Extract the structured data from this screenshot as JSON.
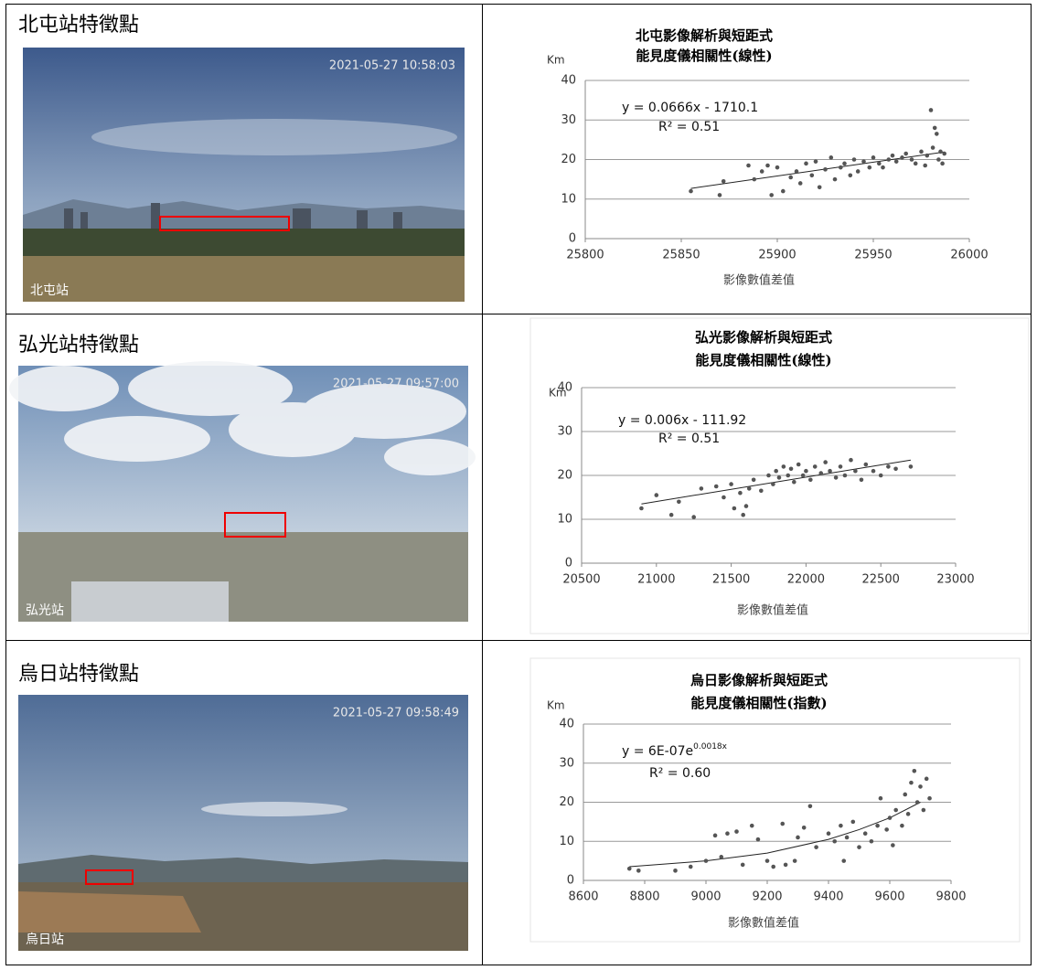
{
  "table": {
    "rows": [
      {
        "title": "北屯站特徵點",
        "timestamp": "2021-05-27 10:58:03",
        "station": "北屯站"
      },
      {
        "title": "弘光站特徵點",
        "timestamp": "2021-05-27 09:57:00",
        "station": "弘光站"
      },
      {
        "title": "烏日站特徵點",
        "timestamp": "2021-05-27 09:58:49",
        "station": "烏日站"
      }
    ]
  },
  "chart_data": [
    {
      "type": "scatter",
      "title": [
        "北屯影像解析與短距式",
        "能見度儀相關性(線性)"
      ],
      "ylabel": "Km",
      "xlabel": "影像數值差值",
      "equation": {
        "text": "y = 0.0666x - 1710.1"
      },
      "r2": "R² = 0.51",
      "color": "#555555",
      "x": [
        25855,
        25870,
        25872,
        25885,
        25888,
        25892,
        25895,
        25897,
        25900,
        25903,
        25907,
        25910,
        25912,
        25915,
        25918,
        25920,
        25922,
        25925,
        25928,
        25930,
        25933,
        25935,
        25938,
        25940,
        25942,
        25945,
        25948,
        25950,
        25953,
        25955,
        25958,
        25960,
        25962,
        25965,
        25967,
        25970,
        25972,
        25975,
        25977,
        25978,
        25980,
        25981,
        25982,
        25983,
        25984,
        25985,
        25986,
        25987
      ],
      "values": [
        12,
        11,
        14.5,
        18.5,
        15,
        17,
        18.5,
        11,
        18,
        12,
        15.5,
        17,
        14,
        19,
        16,
        19.5,
        13,
        17.5,
        20.5,
        15,
        18,
        19,
        16,
        20,
        17,
        19.5,
        18,
        20.5,
        19,
        18,
        20,
        21,
        19.5,
        20.5,
        21.5,
        20,
        19,
        22,
        18.5,
        21,
        32.5,
        23,
        28,
        26.5,
        20,
        22,
        19,
        21.5
      ],
      "trendline": {
        "x": [
          25855,
          25987
        ],
        "values": [
          12.7,
          21.9
        ]
      },
      "xlim": [
        25800,
        26000
      ],
      "ylim": [
        0,
        40
      ],
      "xticks": [
        25800,
        25850,
        25900,
        25950,
        26000
      ],
      "yticks": [
        0,
        10,
        20,
        30,
        40
      ]
    },
    {
      "type": "scatter",
      "title": [
        "弘光影像解析與短距式",
        "能見度儀相關性(線性)"
      ],
      "ylabel": "Km",
      "xlabel": "影像數值差值",
      "equation": {
        "text": "y = 0.006x - 111.92"
      },
      "r2": "R² = 0.51",
      "color": "#555555",
      "x": [
        20900,
        21000,
        21100,
        21150,
        21250,
        21300,
        21400,
        21450,
        21500,
        21520,
        21560,
        21580,
        21600,
        21620,
        21650,
        21700,
        21750,
        21780,
        21800,
        21820,
        21850,
        21880,
        21900,
        21920,
        21950,
        21980,
        22000,
        22030,
        22060,
        22100,
        22130,
        22160,
        22200,
        22230,
        22260,
        22300,
        22330,
        22370,
        22400,
        22450,
        22500,
        22550,
        22600,
        22700
      ],
      "values": [
        12.5,
        15.5,
        11,
        14,
        10.5,
        17,
        17.5,
        15,
        18,
        12.5,
        16,
        11,
        13,
        17,
        19,
        16.5,
        20,
        18,
        21,
        19.5,
        22,
        20,
        21.5,
        18.5,
        22.5,
        20,
        21,
        19,
        22,
        20.5,
        23,
        21,
        19.5,
        22,
        20,
        23.5,
        21,
        19,
        22.5,
        21,
        20,
        22,
        21.5,
        22
      ],
      "trendline": {
        "x": [
          20900,
          22700
        ],
        "values": [
          13.5,
          23.5
        ]
      },
      "xlim": [
        20500,
        23000
      ],
      "ylim": [
        0,
        40
      ],
      "xticks": [
        20500,
        21000,
        21500,
        22000,
        22500,
        23000
      ],
      "yticks": [
        0,
        10,
        20,
        30,
        40
      ]
    },
    {
      "type": "scatter",
      "title": [
        "烏日影像解析與短距式",
        "能見度儀相關性(指數)"
      ],
      "ylabel": "Km",
      "xlabel": "影像數值差值",
      "equation": {
        "text": "y = 6E-07e",
        "superscript": "0.0018x"
      },
      "r2": "R² = 0.60",
      "color": "#555555",
      "x": [
        8750,
        8780,
        8900,
        8950,
        9000,
        9030,
        9050,
        9070,
        9100,
        9120,
        9150,
        9170,
        9200,
        9220,
        9250,
        9260,
        9290,
        9300,
        9320,
        9340,
        9360,
        9400,
        9420,
        9440,
        9450,
        9460,
        9480,
        9500,
        9520,
        9540,
        9560,
        9570,
        9590,
        9600,
        9610,
        9620,
        9640,
        9650,
        9660,
        9670,
        9680,
        9690,
        9700,
        9710,
        9720,
        9730
      ],
      "values": [
        3,
        2.5,
        2.5,
        3.5,
        5,
        11.5,
        6,
        12,
        12.5,
        4,
        14,
        10.5,
        5,
        3.5,
        14.5,
        4,
        5,
        11,
        13.5,
        19,
        8.5,
        12,
        10,
        14,
        5,
        11,
        15,
        8.5,
        12,
        10,
        14,
        21,
        13,
        16,
        9,
        18,
        14,
        22,
        17,
        25,
        28,
        20,
        24,
        18,
        26,
        21
      ],
      "trendline": {
        "x": [
          8750,
          9000,
          9200,
          9400,
          9500,
          9600,
          9700
        ],
        "values": [
          3.5,
          5,
          7,
          10.5,
          13,
          16,
          20
        ]
      },
      "xlim": [
        8600,
        9800
      ],
      "ylim": [
        0,
        40
      ],
      "xticks": [
        8600,
        8800,
        9000,
        9200,
        9400,
        9600,
        9800
      ],
      "yticks": [
        0,
        10,
        20,
        30,
        40
      ]
    }
  ]
}
